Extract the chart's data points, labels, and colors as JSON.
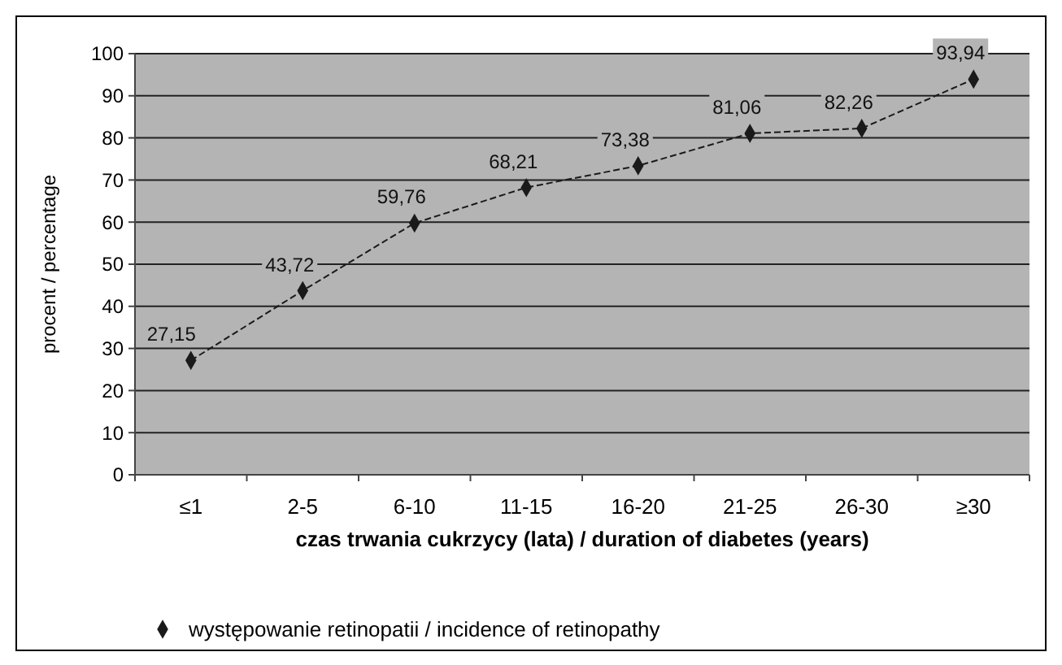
{
  "chart_data": {
    "type": "line",
    "xlabel": "czas trwania cukrzycy (lata) / duration of diabetes (years)",
    "ylabel": "procent / percentage",
    "categories": [
      "≤1",
      "2-5",
      "6-10",
      "11-15",
      "16-20",
      "21-25",
      "26-30",
      "≥30"
    ],
    "series": [
      {
        "name": "występowanie retinopatii / incidence of retinopathy",
        "color": "#1a1a1a",
        "values": [
          27.15,
          43.72,
          59.76,
          68.21,
          73.38,
          81.06,
          82.26,
          93.94
        ],
        "value_labels": [
          "27,15",
          "43,72",
          "59,76",
          "68,21",
          "73,38",
          "81,06",
          "82,26",
          "93,94"
        ]
      }
    ],
    "ylim": [
      0,
      100
    ],
    "yticks": [
      0,
      10,
      20,
      30,
      40,
      50,
      60,
      70,
      80,
      90,
      100
    ],
    "grid": "y",
    "legend": "bottom",
    "marker": "diamond",
    "line_style": "dashed"
  }
}
